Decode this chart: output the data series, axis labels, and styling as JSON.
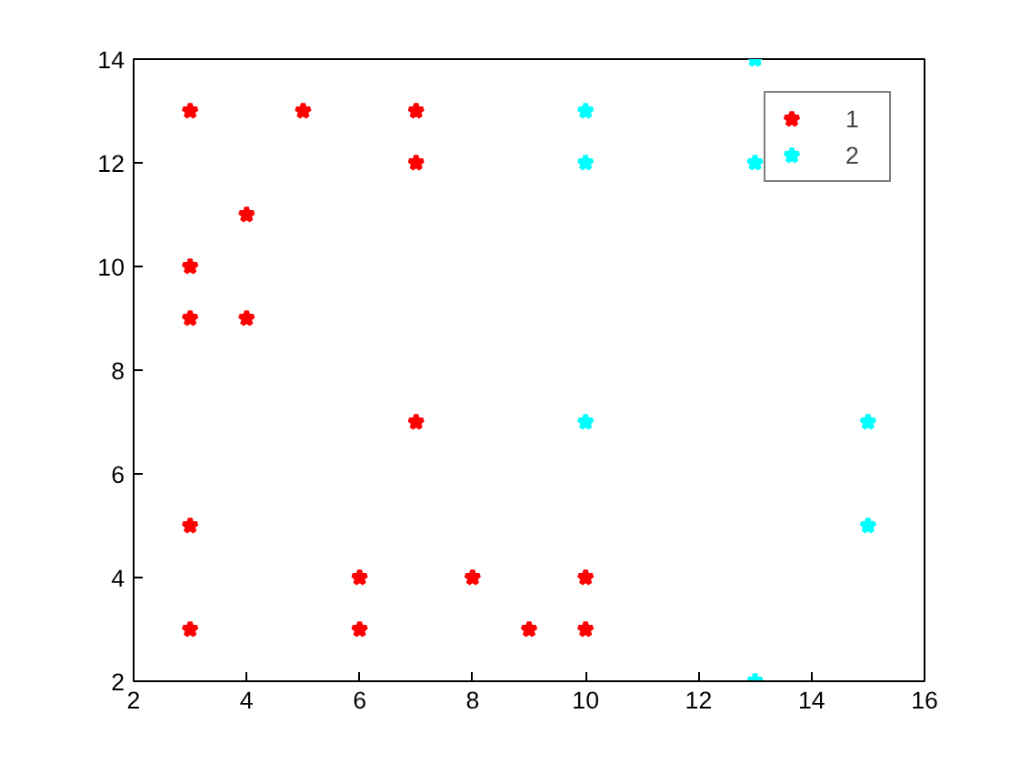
{
  "chart_data": {
    "type": "scatter",
    "xlim": [
      2,
      16
    ],
    "ylim": [
      2,
      14
    ],
    "xticks": [
      2,
      4,
      6,
      8,
      10,
      12,
      14,
      16
    ],
    "yticks": [
      2,
      4,
      6,
      8,
      10,
      12,
      14
    ],
    "grid": false,
    "legend": "top right",
    "marker": "star",
    "series": [
      {
        "name": "1",
        "color": "#ff0000",
        "x": [
          3,
          5,
          7,
          7,
          4,
          3,
          3,
          4,
          7,
          3,
          6,
          8,
          10,
          3,
          6,
          9,
          10
        ],
        "values": [
          13,
          13,
          13,
          12,
          11,
          10,
          9,
          9,
          7,
          5,
          4,
          4,
          4,
          3,
          3,
          3,
          3
        ]
      },
      {
        "name": "2",
        "color": "#00ffff",
        "x": [
          13,
          10,
          10,
          13,
          10,
          15,
          15,
          13
        ],
        "values": [
          14,
          13,
          12,
          12,
          7,
          7,
          5,
          2
        ]
      }
    ]
  }
}
